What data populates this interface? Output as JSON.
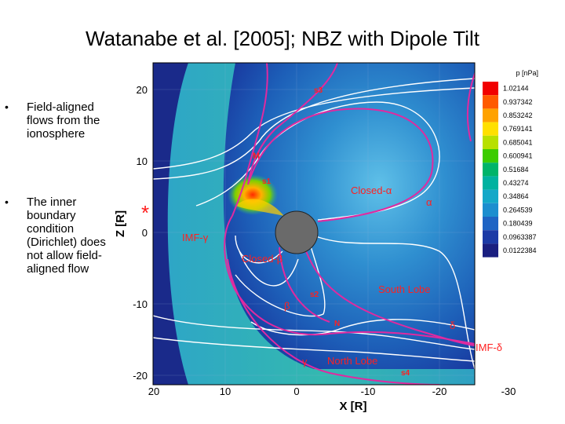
{
  "title": "Watanabe et al. [2005]; NBZ with Dipole Tilt",
  "bullets": [
    "Field-aligned flows from the ionosphere",
    "The inner boundary condition (Dirichlet) does not allow field-aligned flow"
  ],
  "plot": {
    "ylabel": "Z [R]",
    "xlabel": "X [R]",
    "yticks": [
      "20",
      "10",
      "0",
      "-10",
      "-20"
    ],
    "xticks": [
      "20",
      "10",
      "0",
      "-10",
      "-20",
      "-30"
    ],
    "star": "*",
    "region_labels": {
      "s3": "s3",
      "M": "M",
      "s1": "s1",
      "closed_alpha": "Closed-α",
      "alpha": "α",
      "imf_gamma": "IMF-γ",
      "closed_beta": "Closed-β",
      "s2": "s2",
      "south_lobe": "South Lobe",
      "beta": "β",
      "N": "N",
      "delta": "δ",
      "imf_delta": "IMF-δ",
      "gamma": "γ",
      "north_lobe": "North Lobe",
      "s4": "s4"
    }
  },
  "colorbar": {
    "title": "p [nPa]",
    "values": [
      "1.02144",
      "0.937342",
      "0.853242",
      "0.769141",
      "0.685041",
      "0.600941",
      "0.51684",
      "0.43274",
      "0.34864",
      "0.264539",
      "0.180439",
      "0.0963387",
      "0.0122384"
    ],
    "colors": [
      "#f10000",
      "#ff5a00",
      "#ffa200",
      "#ffe000",
      "#b8e000",
      "#3ccc00",
      "#00b46a",
      "#00b2a0",
      "#14a8c8",
      "#1c8ecf",
      "#1e64c4",
      "#1c3aa6",
      "#1a1f80"
    ]
  }
}
